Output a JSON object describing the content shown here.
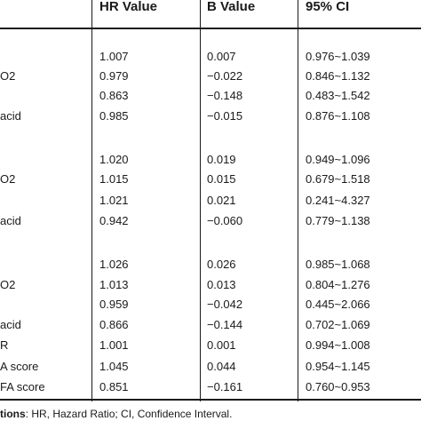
{
  "table": {
    "headers": [
      "HR Value",
      "B Value",
      "95% CI"
    ],
    "rows": [
      {
        "label": "",
        "hr": "1.007",
        "b": "0.007",
        "ci": "0.976~1.039"
      },
      {
        "label": "O2",
        "hr": "0.979",
        "b": "−0.022",
        "ci": "0.846~1.132"
      },
      {
        "label": "",
        "hr": "0.863",
        "b": "−0.148",
        "ci": "0.483~1.542"
      },
      {
        "label": "acid",
        "hr": "0.985",
        "b": "−0.015",
        "ci": "0.876~1.108"
      },
      {
        "label": "",
        "hr": "1.020",
        "b": "0.019",
        "ci": "0.949~1.096"
      },
      {
        "label": "O2",
        "hr": "1.015",
        "b": "0.015",
        "ci": "0.679~1.518"
      },
      {
        "label": "",
        "hr": "1.021",
        "b": "0.021",
        "ci": "0.241~4.327"
      },
      {
        "label": "acid",
        "hr": "0.942",
        "b": "−0.060",
        "ci": "0.779~1.138"
      },
      {
        "label": "",
        "hr": "1.026",
        "b": "0.026",
        "ci": "0.985~1.068"
      },
      {
        "label": "O2",
        "hr": "1.013",
        "b": "0.013",
        "ci": "0.804~1.276"
      },
      {
        "label": "",
        "hr": "0.959",
        "b": "−0.042",
        "ci": "0.445~2.066"
      },
      {
        "label": "acid",
        "hr": "0.866",
        "b": "−0.144",
        "ci": "0.702~1.069"
      },
      {
        "label": "R",
        "hr": "1.001",
        "b": "0.001",
        "ci": "0.994~1.008"
      },
      {
        "label": "A score",
        "hr": "1.045",
        "b": "0.044",
        "ci": "0.954~1.145"
      },
      {
        "label": "FA score",
        "hr": "0.851",
        "b": "−0.161",
        "ci": "0.760~0.953"
      }
    ]
  },
  "footnote": {
    "bold": "tions",
    "text": ": HR, Hazard Ratio; CI, Confidence Interval."
  }
}
